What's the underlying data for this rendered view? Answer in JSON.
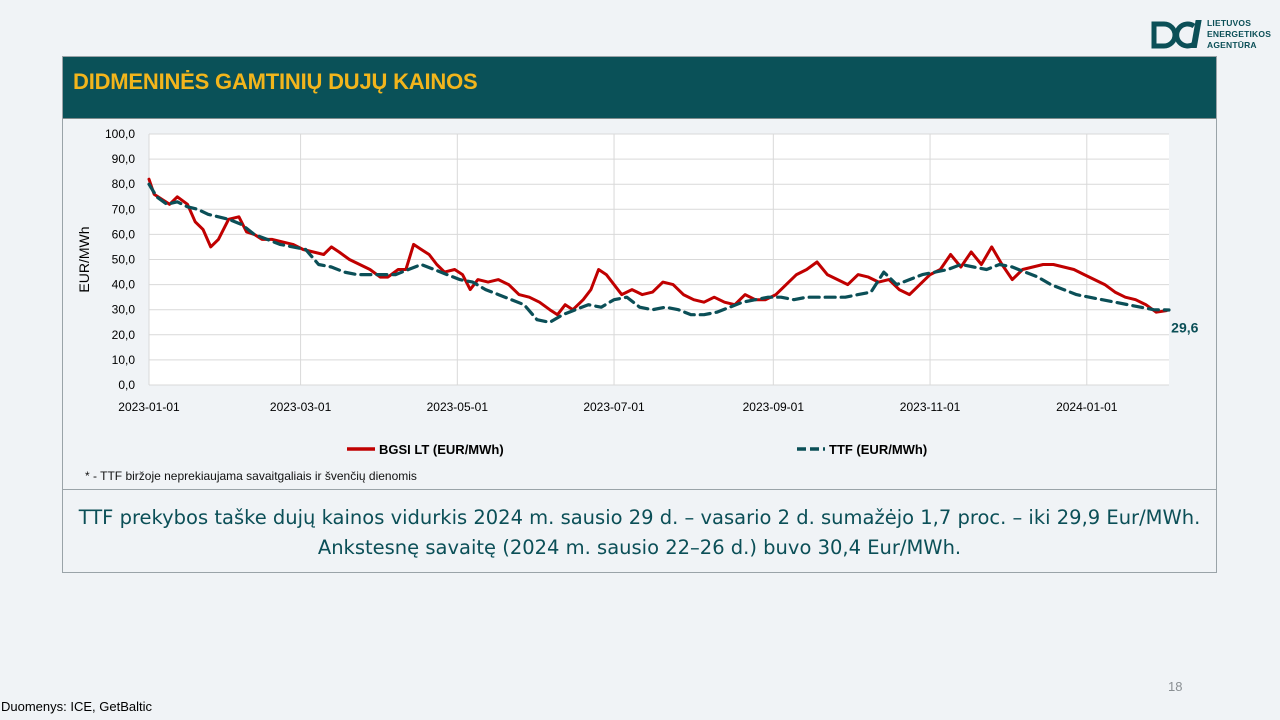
{
  "logo": {
    "lines": [
      "LIETUVOS",
      "ENERGETIKOS",
      "AGENTŪRA"
    ]
  },
  "title": "DIDMENINĖS GAMTINIŲ DUJŲ KAINOS",
  "chart_data": {
    "type": "line",
    "ylabel": "EUR/MWh",
    "ylim": [
      0,
      100
    ],
    "yticks": [
      "0,0",
      "10,0",
      "20,0",
      "30,0",
      "40,0",
      "50,0",
      "60,0",
      "70,0",
      "80,0",
      "90,0",
      "100,0"
    ],
    "xticks": [
      "2023-01-01",
      "2023-03-01",
      "2023-05-01",
      "2023-07-01",
      "2023-09-01",
      "2023-11-01",
      "2024-01-01"
    ],
    "xlim": [
      "2023-01-01",
      "2024-02-02"
    ],
    "grid": true,
    "legend_position": "bottom",
    "end_label": "29,6",
    "series": [
      {
        "name": "BGSI LT (EUR/MWh)",
        "color": "#c00000",
        "style": "solid",
        "points": [
          [
            "2023-01-01",
            82
          ],
          [
            "2023-01-03",
            76
          ],
          [
            "2023-01-06",
            74
          ],
          [
            "2023-01-09",
            72
          ],
          [
            "2023-01-12",
            75
          ],
          [
            "2023-01-16",
            72
          ],
          [
            "2023-01-19",
            65
          ],
          [
            "2023-01-22",
            62
          ],
          [
            "2023-01-25",
            55
          ],
          [
            "2023-01-28",
            58
          ],
          [
            "2023-02-01",
            66
          ],
          [
            "2023-02-05",
            67
          ],
          [
            "2023-02-08",
            61
          ],
          [
            "2023-02-11",
            60
          ],
          [
            "2023-02-14",
            58
          ],
          [
            "2023-02-18",
            58
          ],
          [
            "2023-02-22",
            57
          ],
          [
            "2023-02-26",
            56
          ],
          [
            "2023-03-02",
            54
          ],
          [
            "2023-03-06",
            53
          ],
          [
            "2023-03-10",
            52
          ],
          [
            "2023-03-13",
            55
          ],
          [
            "2023-03-16",
            53
          ],
          [
            "2023-03-20",
            50
          ],
          [
            "2023-03-24",
            48
          ],
          [
            "2023-03-28",
            46
          ],
          [
            "2023-04-01",
            43
          ],
          [
            "2023-04-04",
            43
          ],
          [
            "2023-04-08",
            46
          ],
          [
            "2023-04-11",
            46
          ],
          [
            "2023-04-14",
            56
          ],
          [
            "2023-04-17",
            54
          ],
          [
            "2023-04-20",
            52
          ],
          [
            "2023-04-23",
            48
          ],
          [
            "2023-04-26",
            45
          ],
          [
            "2023-04-30",
            46
          ],
          [
            "2023-05-03",
            44
          ],
          [
            "2023-05-06",
            38
          ],
          [
            "2023-05-09",
            42
          ],
          [
            "2023-05-13",
            41
          ],
          [
            "2023-05-17",
            42
          ],
          [
            "2023-05-21",
            40
          ],
          [
            "2023-05-25",
            36
          ],
          [
            "2023-05-29",
            35
          ],
          [
            "2023-06-02",
            33
          ],
          [
            "2023-06-06",
            30
          ],
          [
            "2023-06-09",
            28
          ],
          [
            "2023-06-12",
            32
          ],
          [
            "2023-06-15",
            30
          ],
          [
            "2023-06-19",
            34
          ],
          [
            "2023-06-22",
            38
          ],
          [
            "2023-06-25",
            46
          ],
          [
            "2023-06-28",
            44
          ],
          [
            "2023-07-01",
            40
          ],
          [
            "2023-07-04",
            36
          ],
          [
            "2023-07-08",
            38
          ],
          [
            "2023-07-12",
            36
          ],
          [
            "2023-07-16",
            37
          ],
          [
            "2023-07-20",
            41
          ],
          [
            "2023-07-24",
            40
          ],
          [
            "2023-07-28",
            36
          ],
          [
            "2023-08-01",
            34
          ],
          [
            "2023-08-05",
            33
          ],
          [
            "2023-08-09",
            35
          ],
          [
            "2023-08-13",
            33
          ],
          [
            "2023-08-17",
            32
          ],
          [
            "2023-08-21",
            36
          ],
          [
            "2023-08-25",
            34
          ],
          [
            "2023-08-29",
            34
          ],
          [
            "2023-09-02",
            36
          ],
          [
            "2023-09-06",
            40
          ],
          [
            "2023-09-10",
            44
          ],
          [
            "2023-09-14",
            46
          ],
          [
            "2023-09-18",
            49
          ],
          [
            "2023-09-22",
            44
          ],
          [
            "2023-09-26",
            42
          ],
          [
            "2023-09-30",
            40
          ],
          [
            "2023-10-04",
            44
          ],
          [
            "2023-10-08",
            43
          ],
          [
            "2023-10-12",
            41
          ],
          [
            "2023-10-16",
            42
          ],
          [
            "2023-10-20",
            38
          ],
          [
            "2023-10-24",
            36
          ],
          [
            "2023-10-28",
            40
          ],
          [
            "2023-11-01",
            44
          ],
          [
            "2023-11-05",
            46
          ],
          [
            "2023-11-09",
            52
          ],
          [
            "2023-11-13",
            47
          ],
          [
            "2023-11-17",
            53
          ],
          [
            "2023-11-21",
            48
          ],
          [
            "2023-11-25",
            55
          ],
          [
            "2023-11-29",
            48
          ],
          [
            "2023-12-03",
            42
          ],
          [
            "2023-12-07",
            46
          ],
          [
            "2023-12-11",
            47
          ],
          [
            "2023-12-15",
            48
          ],
          [
            "2023-12-19",
            48
          ],
          [
            "2023-12-23",
            47
          ],
          [
            "2023-12-27",
            46
          ],
          [
            "2023-12-31",
            44
          ],
          [
            "2024-01-04",
            42
          ],
          [
            "2024-01-08",
            40
          ],
          [
            "2024-01-12",
            37
          ],
          [
            "2024-01-16",
            35
          ],
          [
            "2024-01-20",
            34
          ],
          [
            "2024-01-24",
            32
          ],
          [
            "2024-01-28",
            29
          ],
          [
            "2024-02-01",
            29.6
          ]
        ]
      },
      {
        "name": "TTF (EUR/MWh)",
        "color": "#0b4f57",
        "style": "dashed",
        "points": [
          [
            "2023-01-01",
            80
          ],
          [
            "2023-01-04",
            75
          ],
          [
            "2023-01-08",
            72
          ],
          [
            "2023-01-12",
            73
          ],
          [
            "2023-01-16",
            71
          ],
          [
            "2023-01-20",
            70
          ],
          [
            "2023-01-24",
            68
          ],
          [
            "2023-01-28",
            67
          ],
          [
            "2023-02-01",
            66
          ],
          [
            "2023-02-06",
            64
          ],
          [
            "2023-02-11",
            60
          ],
          [
            "2023-02-16",
            58
          ],
          [
            "2023-02-21",
            56
          ],
          [
            "2023-02-26",
            55
          ],
          [
            "2023-03-03",
            54
          ],
          [
            "2023-03-08",
            48
          ],
          [
            "2023-03-13",
            47
          ],
          [
            "2023-03-18",
            45
          ],
          [
            "2023-03-23",
            44
          ],
          [
            "2023-03-28",
            44
          ],
          [
            "2023-04-02",
            44
          ],
          [
            "2023-04-07",
            44
          ],
          [
            "2023-04-12",
            46
          ],
          [
            "2023-04-17",
            48
          ],
          [
            "2023-04-22",
            46
          ],
          [
            "2023-04-27",
            44
          ],
          [
            "2023-05-02",
            42
          ],
          [
            "2023-05-07",
            41
          ],
          [
            "2023-05-12",
            38
          ],
          [
            "2023-05-17",
            36
          ],
          [
            "2023-05-22",
            34
          ],
          [
            "2023-05-27",
            32
          ],
          [
            "2023-06-01",
            26
          ],
          [
            "2023-06-06",
            25
          ],
          [
            "2023-06-11",
            28
          ],
          [
            "2023-06-16",
            30
          ],
          [
            "2023-06-21",
            32
          ],
          [
            "2023-06-26",
            31
          ],
          [
            "2023-07-01",
            34
          ],
          [
            "2023-07-06",
            35
          ],
          [
            "2023-07-11",
            31
          ],
          [
            "2023-07-16",
            30
          ],
          [
            "2023-07-21",
            31
          ],
          [
            "2023-07-26",
            30
          ],
          [
            "2023-07-31",
            28
          ],
          [
            "2023-08-05",
            28
          ],
          [
            "2023-08-10",
            29
          ],
          [
            "2023-08-15",
            31
          ],
          [
            "2023-08-20",
            33
          ],
          [
            "2023-08-25",
            34
          ],
          [
            "2023-08-30",
            35
          ],
          [
            "2023-09-04",
            35
          ],
          [
            "2023-09-09",
            34
          ],
          [
            "2023-09-14",
            35
          ],
          [
            "2023-09-19",
            35
          ],
          [
            "2023-09-24",
            35
          ],
          [
            "2023-09-29",
            35
          ],
          [
            "2023-10-04",
            36
          ],
          [
            "2023-10-09",
            37
          ],
          [
            "2023-10-14",
            45
          ],
          [
            "2023-10-19",
            40
          ],
          [
            "2023-10-24",
            42
          ],
          [
            "2023-10-29",
            44
          ],
          [
            "2023-11-03",
            45
          ],
          [
            "2023-11-08",
            46
          ],
          [
            "2023-11-13",
            48
          ],
          [
            "2023-11-18",
            47
          ],
          [
            "2023-11-23",
            46
          ],
          [
            "2023-11-28",
            48
          ],
          [
            "2023-12-03",
            47
          ],
          [
            "2023-12-08",
            45
          ],
          [
            "2023-12-13",
            43
          ],
          [
            "2023-12-18",
            40
          ],
          [
            "2023-12-23",
            38
          ],
          [
            "2023-12-28",
            36
          ],
          [
            "2024-01-02",
            35
          ],
          [
            "2024-01-07",
            34
          ],
          [
            "2024-01-12",
            33
          ],
          [
            "2024-01-17",
            32
          ],
          [
            "2024-01-22",
            31
          ],
          [
            "2024-01-27",
            30
          ],
          [
            "2024-02-02",
            29.9
          ]
        ]
      }
    ]
  },
  "note": "* - TTF biržoje neprekiaujama savaitgaliais ir švenčių dienomis",
  "summary": {
    "line1": "TTF prekybos taške dujų kainos vidurkis 2024 m. sausio 29 d. – vasario 2 d. sumažėjo 1,7 proc. – iki 29,9 Eur/MWh.",
    "line2": "Ankstesnę savaitę (2024 m. sausio 22–26 d.) buvo 30,4 Eur/MWh."
  },
  "page_number": "18",
  "source": "Duomenys: ICE, GetBaltic"
}
